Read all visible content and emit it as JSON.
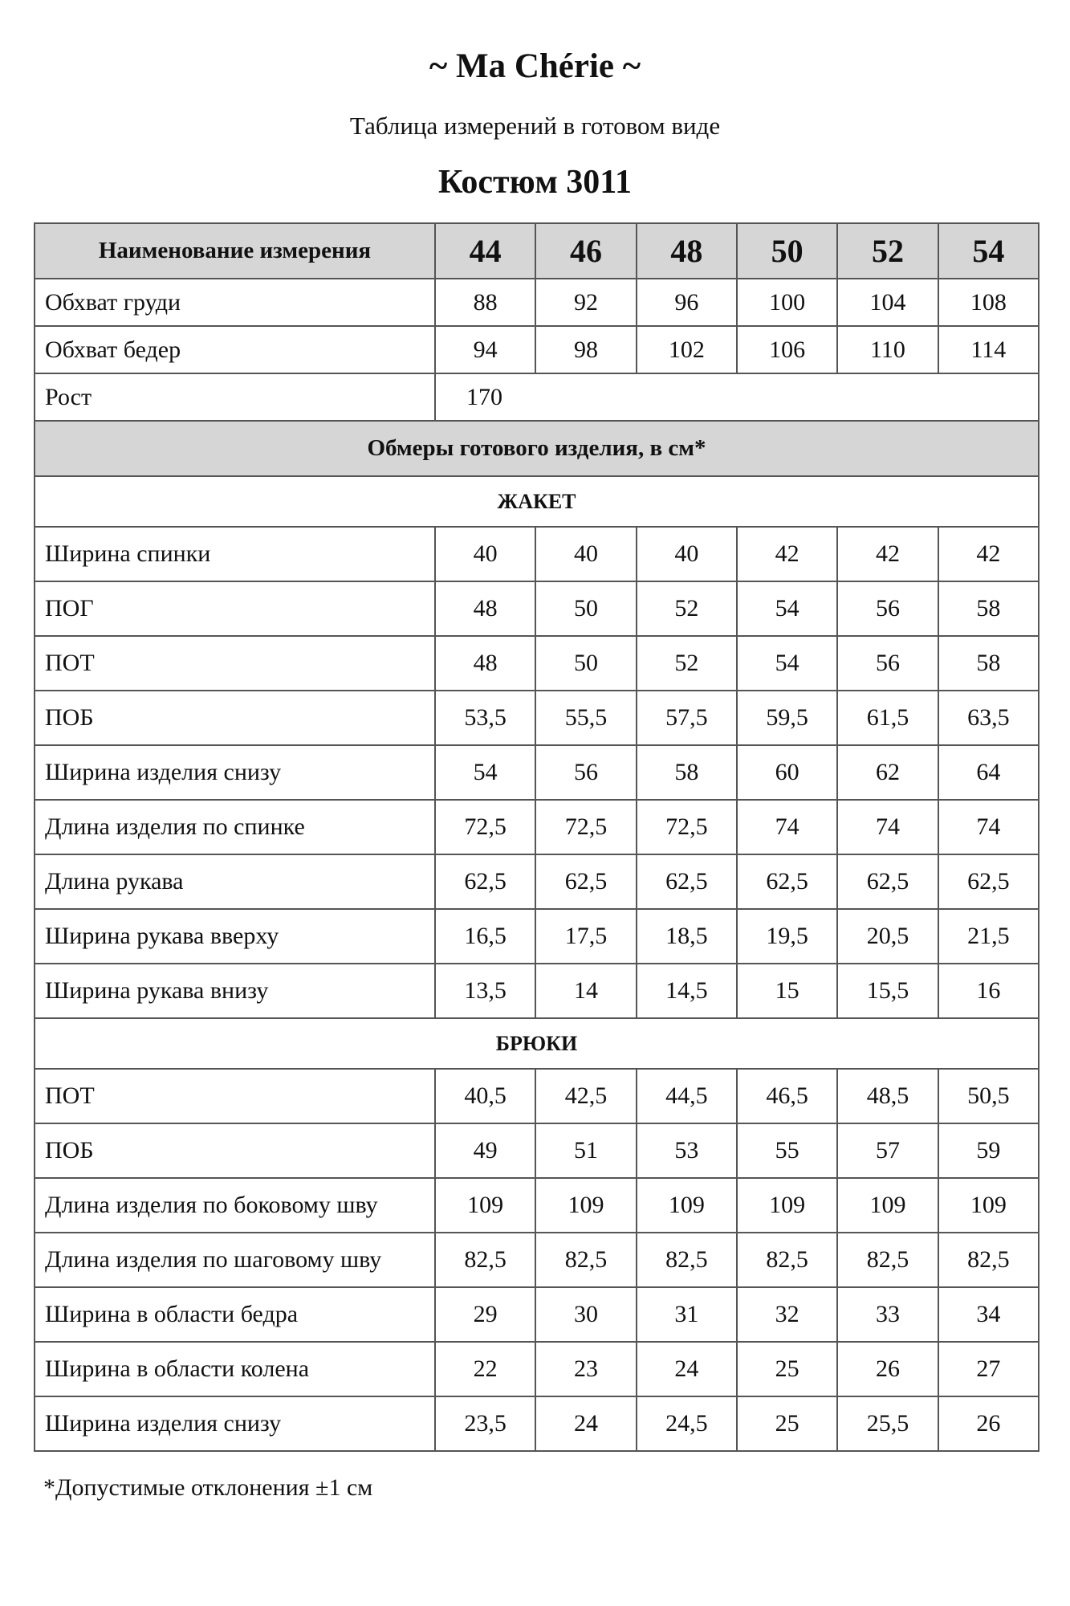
{
  "brand": "~ Ma Chérie ~",
  "subtitle": "Таблица измерений в готовом виде",
  "product": "Костюм  3011",
  "table": {
    "name_header": "Наименование измерения",
    "sizes": [
      "44",
      "46",
      "48",
      "50",
      "52",
      "54"
    ],
    "body_rows": [
      {
        "label": "Обхват груди",
        "values": [
          "88",
          "92",
          "96",
          "100",
          "104",
          "108"
        ]
      },
      {
        "label": "Обхват бедер",
        "values": [
          "94",
          "98",
          "102",
          "106",
          "110",
          "114"
        ]
      }
    ],
    "height_row": {
      "label": "Рост",
      "value": "170"
    },
    "section_title": "Обмеры готового изделия, в см*",
    "groups": [
      {
        "title": "ЖАКЕТ",
        "rows": [
          {
            "label": "Ширина спинки",
            "values": [
              "40",
              "40",
              "40",
              "42",
              "42",
              "42"
            ]
          },
          {
            "label": "ПОГ",
            "values": [
              "48",
              "50",
              "52",
              "54",
              "56",
              "58"
            ]
          },
          {
            "label": "ПОТ",
            "values": [
              "48",
              "50",
              "52",
              "54",
              "56",
              "58"
            ]
          },
          {
            "label": "ПОБ",
            "values": [
              "53,5",
              "55,5",
              "57,5",
              "59,5",
              "61,5",
              "63,5"
            ]
          },
          {
            "label": "Ширина изделия снизу",
            "values": [
              "54",
              "56",
              "58",
              "60",
              "62",
              "64"
            ]
          },
          {
            "label": "Длина изделия по спинке",
            "values": [
              "72,5",
              "72,5",
              "72,5",
              "74",
              "74",
              "74"
            ]
          },
          {
            "label": "Длина рукава",
            "values": [
              "62,5",
              "62,5",
              "62,5",
              "62,5",
              "62,5",
              "62,5"
            ]
          },
          {
            "label": "Ширина рукава вверху",
            "values": [
              "16,5",
              "17,5",
              "18,5",
              "19,5",
              "20,5",
              "21,5"
            ]
          },
          {
            "label": "Ширина рукава внизу",
            "values": [
              "13,5",
              "14",
              "14,5",
              "15",
              "15,5",
              "16"
            ]
          }
        ]
      },
      {
        "title": "БРЮКИ",
        "rows": [
          {
            "label": "ПОТ",
            "values": [
              "40,5",
              "42,5",
              "44,5",
              "46,5",
              "48,5",
              "50,5"
            ]
          },
          {
            "label": "ПОБ",
            "values": [
              "49",
              "51",
              "53",
              "55",
              "57",
              "59"
            ]
          },
          {
            "label": "Длина изделия по боковому шву",
            "values": [
              "109",
              "109",
              "109",
              "109",
              "109",
              "109"
            ]
          },
          {
            "label": "Длина изделия по шаговому шву",
            "values": [
              "82,5",
              "82,5",
              "82,5",
              "82,5",
              "82,5",
              "82,5"
            ]
          },
          {
            "label": "Ширина в области бедра",
            "values": [
              "29",
              "30",
              "31",
              "32",
              "33",
              "34"
            ]
          },
          {
            "label": "Ширина в области колена",
            "values": [
              "22",
              "23",
              "24",
              "25",
              "26",
              "27"
            ]
          },
          {
            "label": "Ширина изделия снизу",
            "values": [
              "23,5",
              "24",
              "24,5",
              "25",
              "25,5",
              "26"
            ]
          }
        ]
      }
    ]
  },
  "footnote": "*Допустимые отклонения ±1 см",
  "colors": {
    "header_bg": "#d6d6d6",
    "border": "#555555"
  }
}
